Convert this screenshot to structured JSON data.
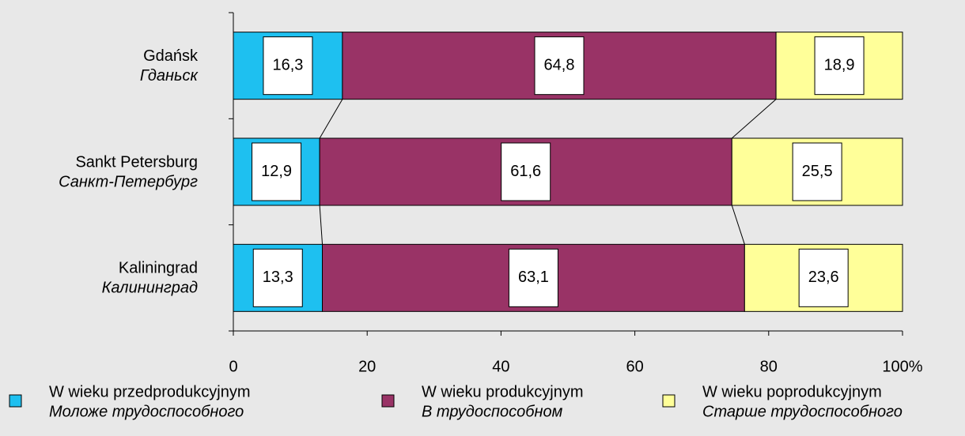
{
  "chart_data": {
    "type": "stacked_bar_horizontal_100",
    "categories": [
      "Gdańsk",
      "Sankt Petersburg",
      "Kaliningrad"
    ],
    "categories_ru": [
      "Гданьск",
      "Санкт-Петербург",
      "Калининград"
    ],
    "series": [
      {
        "name": "W wieku przedprodukcyjnym",
        "name_ru": "Моложе трудоспособного",
        "color": "#1ec0f0",
        "values": [
          16.3,
          12.9,
          13.3
        ],
        "value_labels": [
          "16,3",
          "12,9",
          "13,3"
        ]
      },
      {
        "name": "W wieku produkcyjnym",
        "name_ru": "В трудоспособном",
        "color": "#993366",
        "values": [
          64.8,
          61.6,
          63.1
        ],
        "value_labels": [
          "64,8",
          "61,6",
          "63,1"
        ]
      },
      {
        "name": "W wieku poprodukcyjnym",
        "name_ru": "Старше трудоспособного",
        "color": "#ffff99",
        "values": [
          18.9,
          25.5,
          23.6
        ],
        "value_labels": [
          "18,9",
          "25,5",
          "23,6"
        ]
      }
    ],
    "xlim": [
      0,
      100
    ],
    "xticks": [
      0,
      20,
      40,
      60,
      80,
      {
        "value": 100,
        "label": "100%"
      }
    ],
    "series_lines": true
  }
}
